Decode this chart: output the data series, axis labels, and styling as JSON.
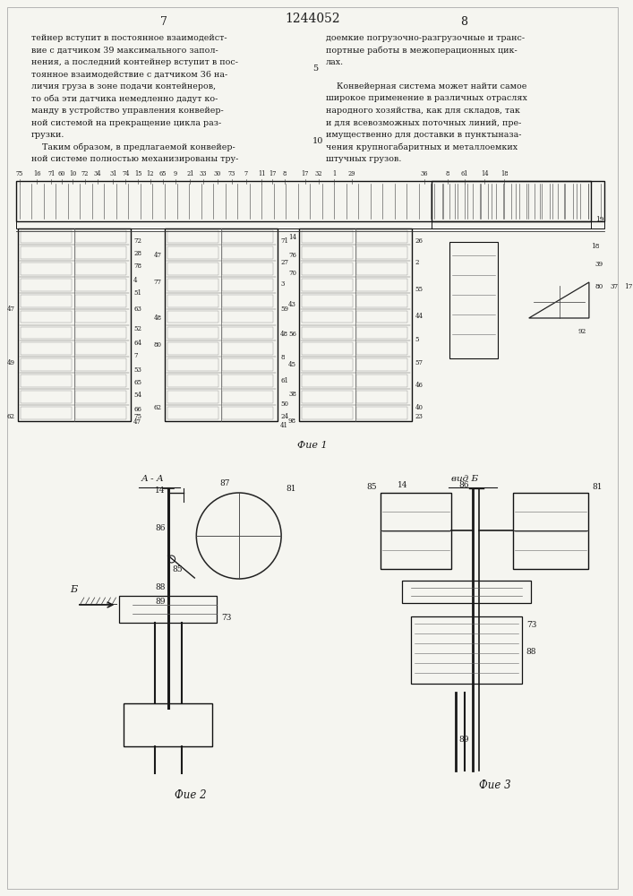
{
  "page_title": "1244052",
  "page_num_left": "7",
  "page_num_right": "8",
  "bg_color": "#f5f5f0",
  "text_color": "#1a1a1a",
  "left_column_text": [
    "тейнер вступит в постоянное взаимодейст-",
    "вие с датчиком 39 максимального запол-",
    "нения, а последний контейнер вступит в пос-",
    "тоянное взаимодействие с датчиком 36 на-",
    "личия груза в зоне подачи контейнеров,",
    "то оба эти датчика немедленно дадут ко-",
    "манду в устройство управления конвейер-",
    "ной системой на прекращение цикла раз-",
    "грузки.",
    "    Таким образом, в предлагаемой конвейер-",
    "ной системе полностью механизированы тру-"
  ],
  "right_col1": [
    "доемкие погрузочно-разгрузочные и транс-",
    "портные работы в межоперационных цик-",
    "лах."
  ],
  "right_col2": [
    "    Конвейерная система может найти самое",
    "широкое применение в различных отраслях",
    "народного хозяйства, как для складов, так",
    "и для всевозможных поточных линий, пре-",
    "имущественно для доставки в пунктыназа-",
    "чения крупногабаритных и металлоемких",
    "штучных грузов."
  ],
  "line_num_5": "5",
  "line_num_10": "10",
  "fig1_label": "Фие 1",
  "fig2_label": "Фие 2",
  "fig3_label": "Фие 3",
  "fig2_section": "А - А",
  "fig3_section": "вид Б",
  "fig2_arrow": "Б"
}
